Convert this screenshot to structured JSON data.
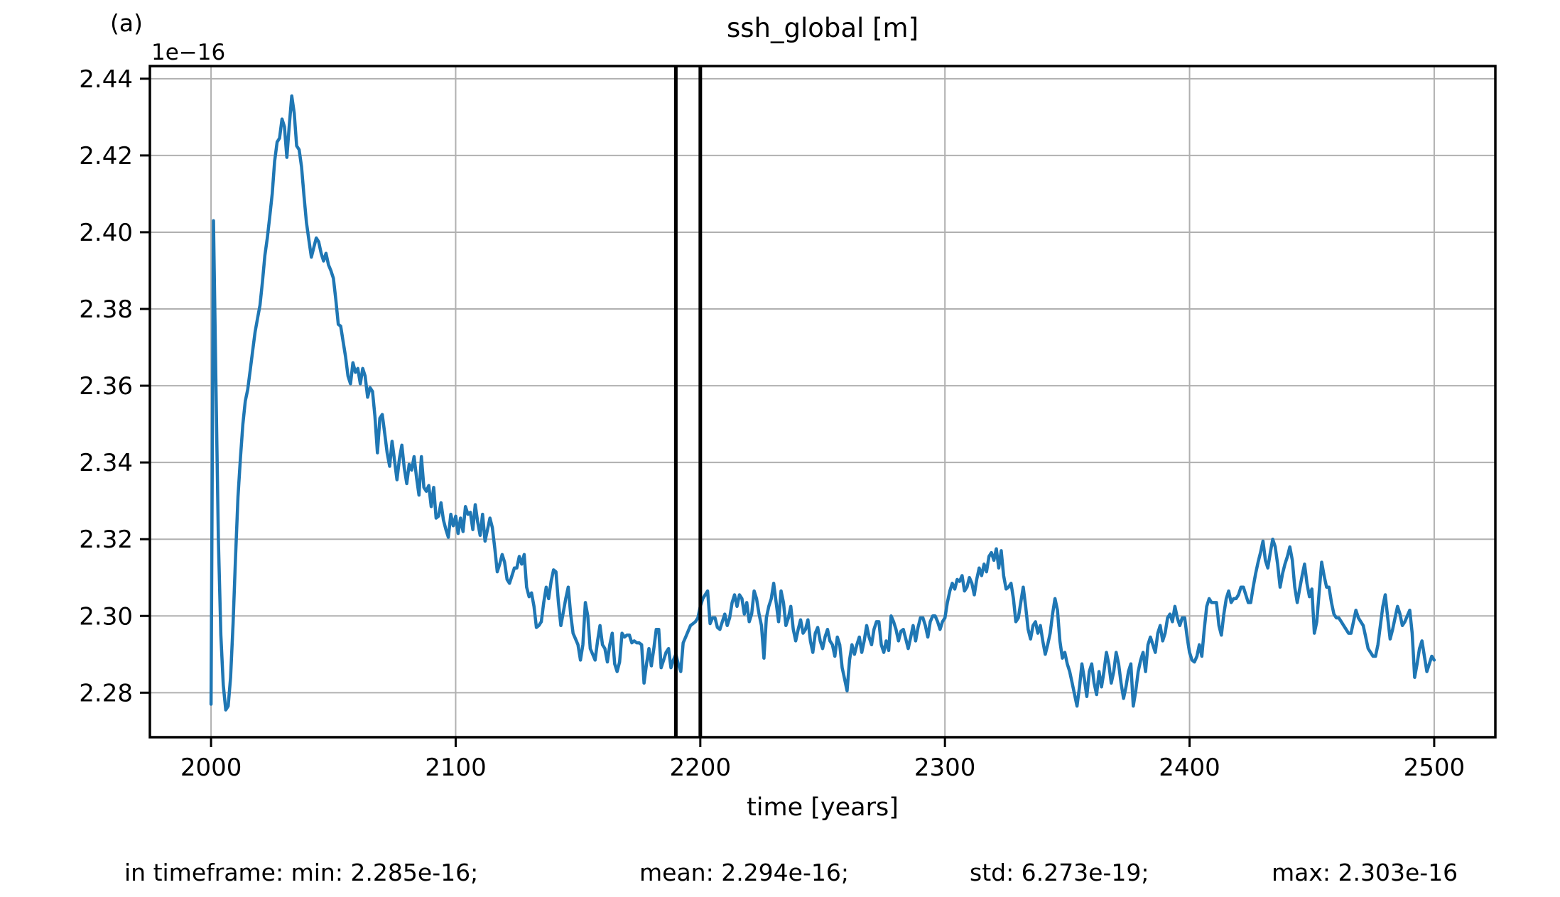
{
  "figure_label": "(a)",
  "title": "ssh_global [m]",
  "xlabel": "time [years]",
  "y_offset_label": "1e−16",
  "footer": {
    "segments": [
      "in timeframe: min: 2.285e-16;",
      "mean: 2.294e-16;",
      "std: 6.273e-19;",
      "max: 2.303e-16"
    ]
  },
  "chart_data": {
    "type": "line",
    "title": "ssh_global [m]",
    "xlabel": "time [years]",
    "ylabel": "",
    "unit": "m",
    "unit_scale": "1e-16",
    "grid": true,
    "legend": "none",
    "xlim": [
      1975,
      2525
    ],
    "ylim": [
      2.2684,
      2.4433
    ],
    "xticks": [
      2000,
      2100,
      2200,
      2300,
      2400,
      2500
    ],
    "yticks": [
      2.28,
      2.3,
      2.32,
      2.34,
      2.36,
      2.38,
      2.4,
      2.42,
      2.44
    ],
    "line_color": "#1f77b4",
    "grid_color": "#b0b0b0",
    "vlines": {
      "x": [
        2190,
        2200
      ],
      "color": "#000000"
    },
    "stats_in_timeframe": {
      "min": "2.285e-16",
      "mean": "2.294e-16",
      "std": "6.273e-19",
      "max": "2.303e-16"
    },
    "series": [
      {
        "name": "ssh_global",
        "x_start": 2000,
        "x_step": 1,
        "values": [
          2.277,
          2.403,
          2.36,
          2.32,
          2.295,
          2.282,
          2.2755,
          2.2765,
          2.284,
          2.298,
          2.315,
          2.331,
          2.341,
          2.35,
          2.356,
          2.359,
          2.364,
          2.369,
          2.374,
          2.3775,
          2.381,
          2.387,
          2.394,
          2.3985,
          2.404,
          2.41,
          2.4185,
          2.4235,
          2.4245,
          2.4295,
          2.4275,
          2.4195,
          2.428,
          2.4355,
          2.431,
          2.4225,
          2.4215,
          2.417,
          2.4095,
          2.4025,
          2.398,
          2.3935,
          2.396,
          2.3985,
          2.3975,
          2.3945,
          2.3925,
          2.3945,
          2.3915,
          2.39,
          2.388,
          2.3825,
          2.376,
          2.3755,
          2.3715,
          2.3675,
          2.3625,
          2.3605,
          2.366,
          2.3635,
          2.3645,
          2.3605,
          2.3645,
          2.3625,
          2.357,
          2.3595,
          2.3585,
          2.352,
          2.3425,
          2.3515,
          2.3525,
          2.3475,
          2.3425,
          2.339,
          2.3455,
          2.3405,
          2.3355,
          2.341,
          2.3445,
          2.3385,
          2.3345,
          2.3395,
          2.338,
          2.3415,
          2.336,
          2.3315,
          2.3415,
          2.3335,
          2.3325,
          2.334,
          2.3285,
          2.3335,
          2.3255,
          2.326,
          2.3295,
          2.325,
          2.3225,
          2.3205,
          2.3265,
          2.3235,
          2.326,
          2.3215,
          2.3255,
          2.322,
          2.3285,
          2.3265,
          2.327,
          2.3225,
          2.329,
          2.3245,
          2.321,
          2.3265,
          2.3195,
          2.3225,
          2.3255,
          2.323,
          2.3175,
          2.3115,
          2.3135,
          2.316,
          2.314,
          2.3095,
          2.3085,
          2.3105,
          2.3125,
          2.3125,
          2.3155,
          2.3135,
          2.316,
          2.3075,
          2.305,
          2.306,
          2.3025,
          2.297,
          2.2975,
          2.2985,
          2.3035,
          2.3075,
          2.3045,
          2.309,
          2.312,
          2.3115,
          2.3035,
          2.2975,
          2.301,
          2.3045,
          2.3075,
          2.3005,
          2.2955,
          2.294,
          2.2925,
          2.2885,
          2.2925,
          2.3035,
          2.3,
          2.2915,
          2.29,
          2.2885,
          2.2935,
          2.2975,
          2.2925,
          2.2915,
          2.288,
          2.2925,
          2.2955,
          2.2875,
          2.2855,
          2.288,
          2.2955,
          2.2945,
          2.295,
          2.295,
          2.293,
          2.2935,
          2.293,
          2.293,
          2.2925,
          2.2825,
          2.2875,
          2.2915,
          2.287,
          2.2915,
          2.2965,
          2.2965,
          2.2865,
          2.2885,
          2.2905,
          2.2915,
          2.2865,
          2.2885,
          2.29,
          2.2875,
          2.2855,
          2.293,
          2.2945,
          2.296,
          2.2975,
          2.298,
          2.2985,
          2.2995,
          2.3025,
          2.3045,
          2.3055,
          2.3065,
          2.298,
          2.2995,
          2.2995,
          2.297,
          2.2965,
          2.2985,
          2.3005,
          2.2975,
          2.2995,
          2.3035,
          2.3055,
          2.3025,
          2.3055,
          2.3045,
          2.3005,
          2.3035,
          2.2985,
          2.3005,
          2.3065,
          2.3045,
          2.3005,
          2.2975,
          2.289,
          2.2995,
          2.3025,
          2.3045,
          2.3085,
          2.3035,
          2.2985,
          2.3065,
          2.3035,
          2.2975,
          2.2995,
          2.3025,
          2.2965,
          2.2935,
          2.2965,
          2.299,
          2.2955,
          2.2965,
          2.299,
          2.2935,
          2.2905,
          2.2955,
          2.297,
          2.2935,
          2.2915,
          2.2945,
          2.2965,
          2.2935,
          2.2925,
          2.2895,
          2.2945,
          2.2925,
          2.2865,
          2.2835,
          2.2805,
          2.2885,
          2.2925,
          2.29,
          2.2925,
          2.2945,
          2.2905,
          2.2935,
          2.2975,
          2.2945,
          2.2925,
          2.2965,
          2.2985,
          2.2985,
          2.2925,
          2.2905,
          2.2935,
          2.291,
          2.3,
          2.2985,
          2.2965,
          2.2935,
          2.296,
          2.2965,
          2.294,
          2.2915,
          2.2945,
          2.2975,
          2.2935,
          2.297,
          2.2995,
          2.2995,
          2.2975,
          2.2945,
          2.2985,
          2.3,
          2.3,
          2.2985,
          2.2965,
          2.2985,
          2.2995,
          2.3035,
          2.3065,
          2.3085,
          2.307,
          2.3095,
          2.309,
          2.3105,
          2.3065,
          2.3075,
          2.31,
          2.3085,
          2.3055,
          2.3095,
          2.3125,
          2.3105,
          2.3135,
          2.3115,
          2.3155,
          2.3165,
          2.3145,
          2.3175,
          2.3125,
          2.317,
          2.3105,
          2.307,
          2.3075,
          2.3085,
          2.3045,
          2.2985,
          2.2995,
          2.3035,
          2.3075,
          2.3025,
          2.2965,
          2.294,
          2.2975,
          2.2985,
          2.2955,
          2.2975,
          2.2935,
          2.29,
          2.2925,
          2.2955,
          2.3005,
          2.3045,
          2.3015,
          2.2935,
          2.289,
          2.2905,
          2.2875,
          2.2855,
          2.2825,
          2.2795,
          2.2765,
          2.2815,
          2.2875,
          2.2835,
          2.279,
          2.2855,
          2.2875,
          2.2825,
          2.2795,
          2.2855,
          2.2815,
          2.2855,
          2.2905,
          2.2875,
          2.2825,
          2.2855,
          2.2905,
          2.2875,
          2.2825,
          2.2785,
          2.2815,
          2.2855,
          2.2875,
          2.2765,
          2.2805,
          2.2855,
          2.2885,
          2.2905,
          2.2855,
          2.2925,
          2.2945,
          2.2925,
          2.2905,
          2.2955,
          2.2975,
          2.2935,
          2.2955,
          2.2995,
          2.3005,
          2.2985,
          2.3025,
          2.2995,
          2.2975,
          2.2995,
          2.2995,
          2.2945,
          2.2905,
          2.2885,
          2.288,
          2.2895,
          2.2925,
          2.2895,
          2.2965,
          2.3025,
          2.3045,
          2.3035,
          2.3035,
          2.3035,
          2.2975,
          2.295,
          2.3005,
          2.3045,
          2.3065,
          2.3035,
          2.3045,
          2.3045,
          2.3055,
          2.3075,
          2.3075,
          2.3055,
          2.3035,
          2.3035,
          2.3075,
          2.311,
          2.314,
          2.3165,
          2.3195,
          2.3145,
          2.3125,
          2.3165,
          2.32,
          2.318,
          2.3135,
          2.3075,
          2.311,
          2.3135,
          2.3155,
          2.318,
          2.3145,
          2.3075,
          2.3035,
          2.307,
          2.3105,
          2.3135,
          2.3085,
          2.305,
          2.307,
          2.2955,
          2.2985,
          2.3065,
          2.314,
          2.3105,
          2.3075,
          2.3075,
          2.3035,
          2.3005,
          2.2995,
          2.2995,
          2.2985,
          2.2975,
          2.2965,
          2.2955,
          2.2955,
          2.2985,
          2.3015,
          2.2995,
          2.2985,
          2.2975,
          2.2945,
          2.2915,
          2.2905,
          2.2895,
          2.2895,
          2.2925,
          2.2975,
          2.3025,
          2.3055,
          2.2995,
          2.294,
          2.2965,
          2.2995,
          2.3025,
          2.3005,
          2.2975,
          2.2985,
          2.3,
          2.3015,
          2.2955,
          2.284,
          2.2875,
          2.2915,
          2.2935,
          2.2895,
          2.2855,
          2.2875,
          2.2895,
          2.2885
        ]
      }
    ]
  }
}
